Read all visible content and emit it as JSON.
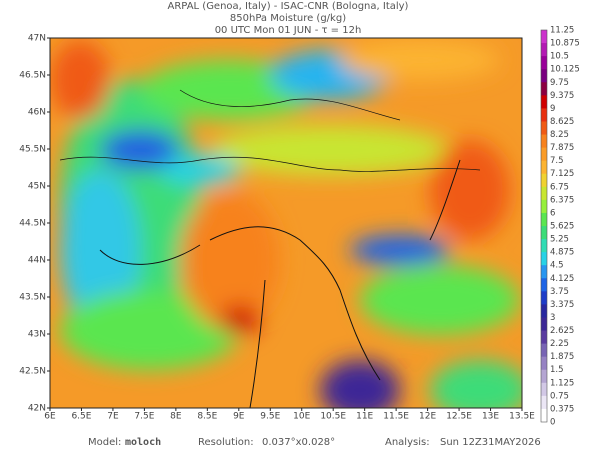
{
  "header": {
    "line1": "ARPAL (Genoa, Italy)  -  ISAC-CNR (Bologna, Italy)",
    "line2": "850hPa Moisture (g/kg)",
    "line3": "00 UTC Mon 01 JUN  -  τ = 12h"
  },
  "map": {
    "lat_labels": [
      "47N",
      "46.5N",
      "46N",
      "45.5N",
      "45N",
      "44.5N",
      "44N",
      "43.5N",
      "43N",
      "42.5N",
      "42N"
    ],
    "lon_labels": [
      "6E",
      "6.5E",
      "7E",
      "7.5E",
      "8E",
      "8.5E",
      "9E",
      "9.5E",
      "10E",
      "10.5E",
      "11E",
      "11.5E",
      "12E",
      "12.5E",
      "13E",
      "13.5E"
    ]
  },
  "colorbar": {
    "labels": [
      11.25,
      10.875,
      10.5,
      10.125,
      9.75,
      9.375,
      9,
      8.625,
      8.25,
      7.875,
      7.5,
      7.125,
      6.75,
      6.375,
      6,
      5.625,
      5.25,
      4.875,
      4.5,
      4.125,
      3.75,
      3.375,
      3,
      2.625,
      2.25,
      1.875,
      1.5,
      1.125,
      0.75,
      0.375,
      0
    ],
    "colors": [
      "#cc33cc",
      "#b31ab3",
      "#990099",
      "#7a0080",
      "#8c0040",
      "#d00000",
      "#e83010",
      "#f05a14",
      "#f7821e",
      "#fa9c28",
      "#fcb432",
      "#f0d232",
      "#c8e632",
      "#96f03c",
      "#5ae650",
      "#3cdc78",
      "#32dcb4",
      "#28d2e6",
      "#2896f0",
      "#1e64e6",
      "#1e3cc8",
      "#2828a0",
      "#3c2896",
      "#5a3ca0",
      "#7864b4",
      "#9682c3",
      "#b4a5d2",
      "#d2c8e6",
      "#ebe6f5",
      "#ffffff"
    ]
  },
  "footer": {
    "model_label": "Model:",
    "model": "moloch",
    "resolution_label": "Resolution:",
    "resolution": "0.037°x0.028°",
    "analysis_label": "Analysis:",
    "analysis": "Sun 12Z31MAY2026"
  }
}
